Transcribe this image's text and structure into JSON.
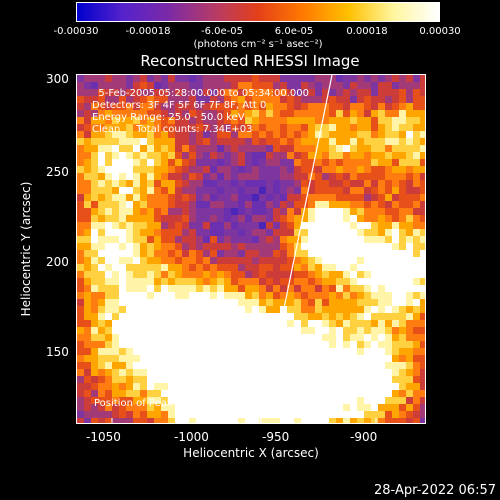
{
  "colorbar": {
    "ticks": [
      "-0.00030",
      "-0.00018",
      "-6.0e-05",
      "6.0e-05",
      "0.00018",
      "0.00030"
    ],
    "unit": "(photons cm⁻² s⁻¹ asec⁻²)",
    "colors": [
      "#0000cc",
      "#5522cc",
      "#7a2aa8",
      "#b43a6a",
      "#e4401a",
      "#ff7a00",
      "#ffc000",
      "#fff6a0",
      "#ffffff"
    ]
  },
  "plot": {
    "title": "Reconstructed RHESSI Image",
    "info_lines": [
      "  5-Feb-2005 05:28:00.000 to 05:34:00.000",
      "Detectors: 3F 4F 5F 6F 7F 8F, Att 0",
      "Energy Range: 25.0 - 50.0 keV",
      "Clean     Total counts: 7.34E+03"
    ],
    "peak_label": "Position of Peak = [-931,216]",
    "xlabel": "Heliocentric X (arcsec)",
    "ylabel": "Heliocentric Y (arcsec)",
    "xticks": [
      "-1050",
      "-1000",
      "-950",
      "-900"
    ],
    "yticks": [
      "150",
      "200",
      "250",
      "300"
    ],
    "background": "#6a30b0"
  },
  "footer": {
    "timestamp": "28-Apr-2022 06:57"
  }
}
